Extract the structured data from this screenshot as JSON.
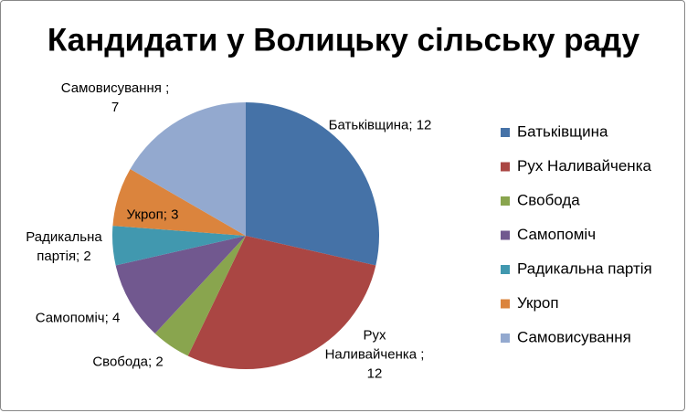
{
  "chart_data": {
    "type": "pie",
    "title": "Кандидати у Волицьку сільську раду",
    "categories": [
      "Батьківщина",
      "Рух Наливайченка",
      "Свобода",
      "Самопоміч",
      "Радикальна партія",
      "Укроп",
      "Самовисування"
    ],
    "values": [
      12,
      12,
      2,
      4,
      2,
      3,
      7
    ],
    "value_labels": [
      "Батьківщина; 12",
      "Рух\nНаливайченка ;\n12",
      "Свобода; 2",
      "Самопоміч; 4",
      "Радикальна\nпартія; 2",
      "Укроп; 3",
      "Самовисування ;\n7"
    ],
    "colors": [
      "#4572a7",
      "#aa4643",
      "#89a54e",
      "#71588f",
      "#4198af",
      "#db843d",
      "#93a9cf"
    ],
    "legend": "right"
  }
}
